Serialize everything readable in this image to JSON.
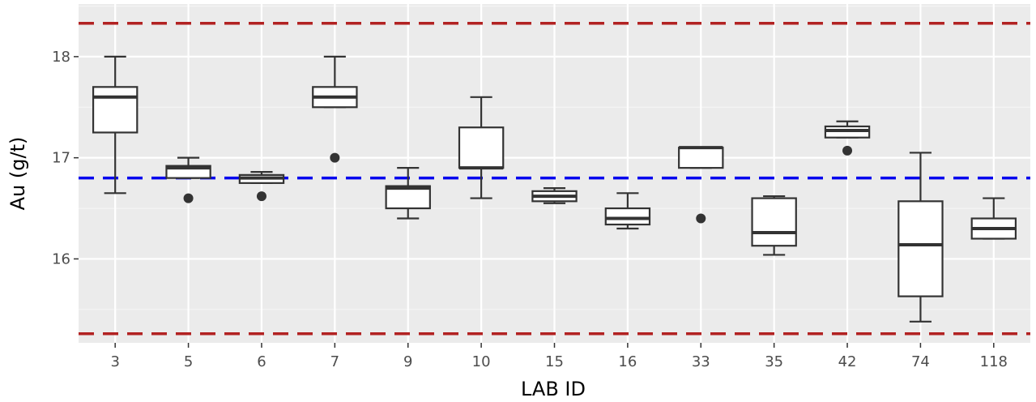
{
  "chart_data": {
    "type": "boxplot",
    "title": "",
    "xlabel": "LAB ID",
    "ylabel": "Au (g/t)",
    "ylim": [
      15.17,
      18.52
    ],
    "yticks": [
      16,
      17,
      18
    ],
    "grid": true,
    "legend": "none",
    "reference_lines": [
      {
        "value": 18.33,
        "color": "#b22222",
        "style": "dashed"
      },
      {
        "value": 16.8,
        "color": "#0000ee",
        "style": "dashed"
      },
      {
        "value": 15.26,
        "color": "#b22222",
        "style": "dashed"
      }
    ],
    "categories": [
      "3",
      "5",
      "6",
      "7",
      "9",
      "10",
      "15",
      "16",
      "33",
      "35",
      "42",
      "74",
      "118"
    ],
    "boxes": [
      {
        "lower_whisker": 16.65,
        "q1": 17.25,
        "median": 17.6,
        "q3": 17.7,
        "upper_whisker": 18.0,
        "outliers": []
      },
      {
        "lower_whisker": 16.8,
        "q1": 16.8,
        "median": 16.9,
        "q3": 16.92,
        "upper_whisker": 17.0,
        "outliers": [
          16.6
        ]
      },
      {
        "lower_whisker": 16.75,
        "q1": 16.75,
        "median": 16.8,
        "q3": 16.83,
        "upper_whisker": 16.86,
        "outliers": [
          16.62
        ]
      },
      {
        "lower_whisker": 17.5,
        "q1": 17.5,
        "median": 17.6,
        "q3": 17.7,
        "upper_whisker": 18.0,
        "outliers": [
          17.0
        ]
      },
      {
        "lower_whisker": 16.4,
        "q1": 16.5,
        "median": 16.7,
        "q3": 16.72,
        "upper_whisker": 16.9,
        "outliers": []
      },
      {
        "lower_whisker": 16.6,
        "q1": 16.9,
        "median": 16.9,
        "q3": 17.3,
        "upper_whisker": 17.6,
        "outliers": []
      },
      {
        "lower_whisker": 16.55,
        "q1": 16.57,
        "median": 16.62,
        "q3": 16.67,
        "upper_whisker": 16.7,
        "outliers": []
      },
      {
        "lower_whisker": 16.3,
        "q1": 16.34,
        "median": 16.4,
        "q3": 16.5,
        "upper_whisker": 16.65,
        "outliers": []
      },
      {
        "lower_whisker": 16.9,
        "q1": 16.9,
        "median": 17.1,
        "q3": 17.1,
        "upper_whisker": 17.1,
        "outliers": [
          16.4
        ]
      },
      {
        "lower_whisker": 16.04,
        "q1": 16.13,
        "median": 16.26,
        "q3": 16.6,
        "upper_whisker": 16.62,
        "outliers": []
      },
      {
        "lower_whisker": 17.2,
        "q1": 17.2,
        "median": 17.27,
        "q3": 17.31,
        "upper_whisker": 17.36,
        "outliers": [
          17.07
        ]
      },
      {
        "lower_whisker": 15.38,
        "q1": 15.63,
        "median": 16.14,
        "q3": 16.57,
        "upper_whisker": 17.05,
        "outliers": []
      },
      {
        "lower_whisker": 16.2,
        "q1": 16.2,
        "median": 16.3,
        "q3": 16.4,
        "upper_whisker": 16.6,
        "outliers": []
      }
    ],
    "colors": {
      "panel": "#ebebeb",
      "grid_major": "#ffffff",
      "grid_minor": "#f5f5f5",
      "box_fill": "#ffffff",
      "box_stroke": "#333333",
      "tick_text": "#4d4d4d"
    }
  }
}
